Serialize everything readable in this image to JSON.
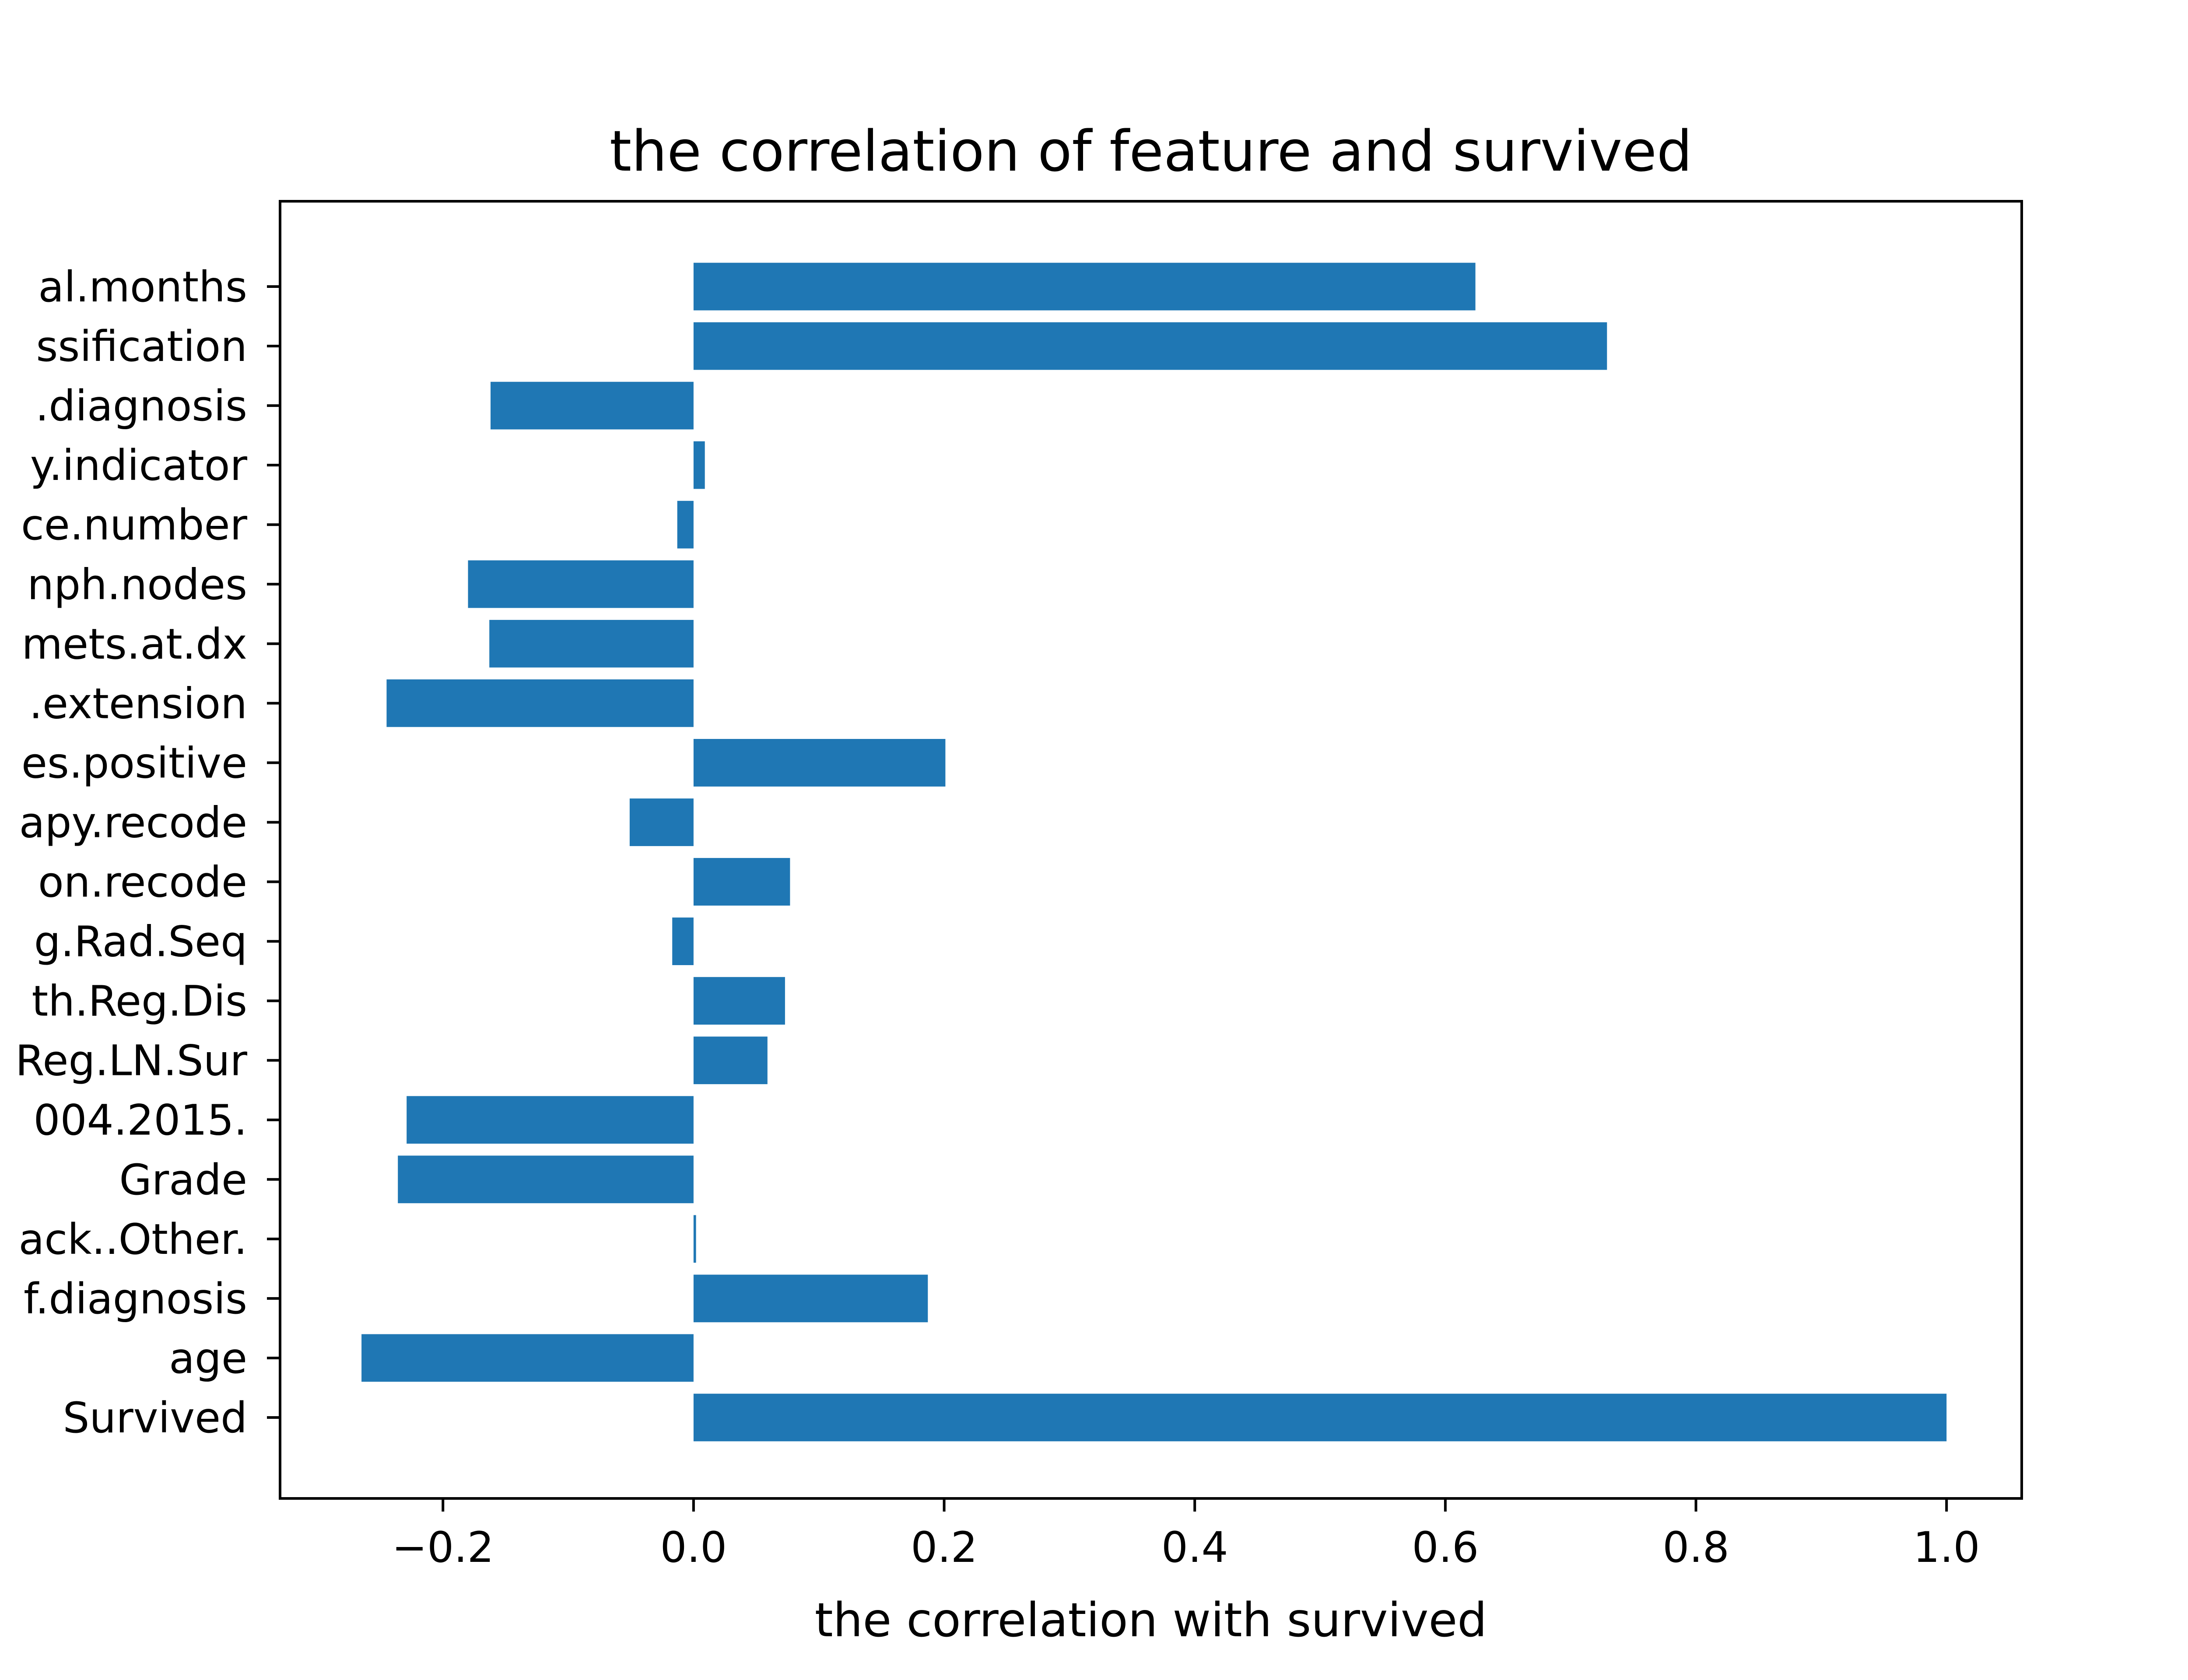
{
  "chart_data": {
    "type": "bar",
    "orientation": "horizontal",
    "title": "the correlation of feature and survived",
    "xlabel": "the correlation with survived",
    "ylabel": "",
    "xlim": [
      -0.33,
      1.06
    ],
    "xticks": [
      -0.2,
      0.0,
      0.2,
      0.4,
      0.6,
      0.8,
      1.0
    ],
    "xtick_labels": [
      "−0.2",
      "0.0",
      "0.2",
      "0.4",
      "0.6",
      "0.8",
      "1.0"
    ],
    "grid": false,
    "legend": "none",
    "bar_color": "#1f77b4",
    "categories": [
      "Survived",
      "age",
      "f.diagnosis",
      "ack..Other.",
      "Grade",
      "004.2015.",
      "Reg.LN.Sur",
      "th.Reg.Dis",
      "g.Rad.Seq",
      "on.recode",
      "apy.recode",
      "es.positive",
      ".extension",
      "mets.at.dx",
      "nph.nodes",
      "ce.number",
      "y.indicator",
      ".diagnosis",
      "ssification",
      "al.months"
    ],
    "values": [
      1.0,
      -0.265,
      0.187,
      0.002,
      -0.236,
      -0.229,
      0.059,
      0.073,
      -0.017,
      0.077,
      -0.051,
      0.201,
      -0.245,
      -0.163,
      -0.18,
      -0.013,
      0.009,
      -0.162,
      0.729,
      0.624
    ]
  }
}
